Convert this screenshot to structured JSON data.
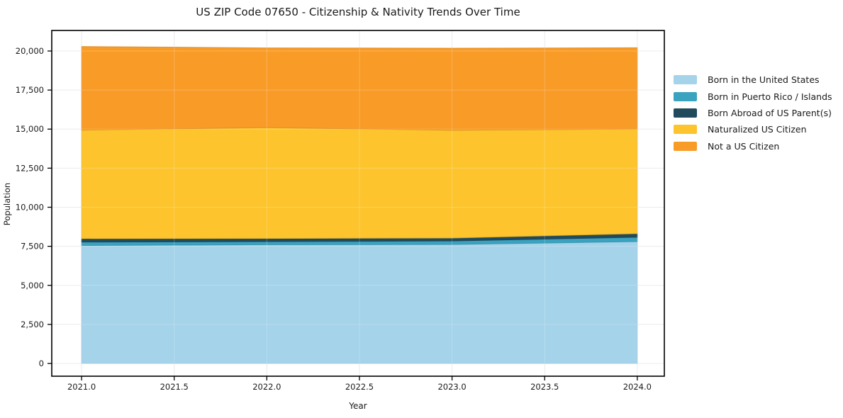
{
  "chart_data": {
    "type": "area",
    "stacked": true,
    "title": "US ZIP Code 07650 - Citizenship & Nativity Trends Over Time",
    "xlabel": "Year",
    "ylabel": "Population",
    "x": [
      2021,
      2022,
      2023,
      2024
    ],
    "series": [
      {
        "name": "Born in the United States",
        "color": "#a4d3ea",
        "values": [
          7550,
          7600,
          7620,
          7800
        ]
      },
      {
        "name": "Born in Puerto Rico / Islands",
        "color": "#3aa3c0",
        "values": [
          220,
          200,
          220,
          280
        ]
      },
      {
        "name": "Born Abroad of US Parent(s)",
        "color": "#214a5c",
        "values": [
          220,
          200,
          190,
          230
        ]
      },
      {
        "name": "Naturalized US Citizen",
        "color": "#fdc42d",
        "values": [
          6950,
          7100,
          6900,
          6700
        ]
      },
      {
        "name": "Not a US Citizen",
        "color": "#f99b27",
        "values": [
          5350,
          5100,
          5250,
          5200
        ]
      }
    ],
    "xlim": [
      2020.839,
      2024.146
    ],
    "ylim": [
      -816,
      21315
    ],
    "x_ticks": {
      "values": [
        2021.0,
        2021.5,
        2022.0,
        2022.5,
        2023.0,
        2023.5,
        2024.0
      ],
      "labels": [
        "2021.0",
        "2021.5",
        "2022.0",
        "2022.5",
        "2023.0",
        "2023.5",
        "2024.0"
      ]
    },
    "y_ticks": {
      "values": [
        0,
        2500,
        5000,
        7500,
        10000,
        12500,
        15000,
        17500,
        20000
      ],
      "labels": [
        "0",
        "2,500",
        "5,000",
        "7,500",
        "10,000",
        "12,500",
        "15,000",
        "17,500",
        "20,000"
      ]
    },
    "grid": true,
    "legend_position": "right-outside",
    "frame_color": "#000000",
    "grid_color": "#e7e7e7"
  }
}
